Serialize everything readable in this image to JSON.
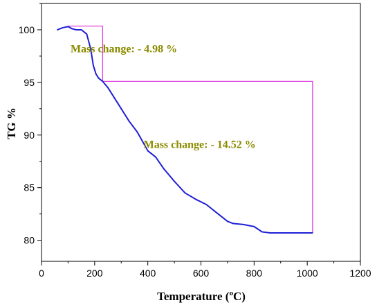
{
  "chart_data": {
    "type": "line",
    "xlabel": "Temperature (",
    "xlabel_sup": "o",
    "xlabel_end": "C)",
    "ylabel": "TG %",
    "xlim": [
      0,
      1200
    ],
    "ylim": [
      78,
      102.5
    ],
    "xticks": [
      "0",
      "200",
      "400",
      "600",
      "800",
      "1000",
      "1200"
    ],
    "yticks": [
      "80",
      "85",
      "90",
      "95",
      "100"
    ],
    "grid": false,
    "series": [
      {
        "color": "#1f1fd6",
        "x": [
          60,
          80,
          100,
          115,
          130,
          150,
          170,
          185,
          195,
          205,
          215,
          230,
          250,
          275,
          300,
          330,
          360,
          400,
          430,
          460,
          500,
          540,
          580,
          620,
          660,
          700,
          720,
          760,
          800,
          830,
          860,
          900,
          950,
          1000,
          1020
        ],
        "y": [
          100.0,
          100.2,
          100.3,
          100.1,
          100.0,
          100.0,
          99.6,
          98.2,
          96.6,
          95.8,
          95.4,
          95.1,
          94.5,
          93.5,
          92.5,
          91.3,
          90.3,
          88.5,
          87.9,
          86.8,
          85.6,
          84.5,
          83.9,
          83.4,
          82.6,
          81.8,
          81.6,
          81.5,
          81.3,
          80.8,
          80.7,
          80.7,
          80.7,
          80.7,
          80.7
        ]
      }
    ],
    "steps": {
      "color": "#e040e0",
      "start_x": 100,
      "step1_x": 230,
      "end_x": 1020,
      "top_y": 100.35,
      "mid_y": 95.1,
      "bottom_y": 80.7
    },
    "annotations": [
      {
        "text": "Mass change: - 4.98 %",
        "x": 255,
        "y": 98.0,
        "color": "#8b8b00"
      },
      {
        "text": "Mass change: - 14.52  %",
        "x": 530,
        "y": 88.9,
        "color": "#8b8b00"
      }
    ]
  }
}
